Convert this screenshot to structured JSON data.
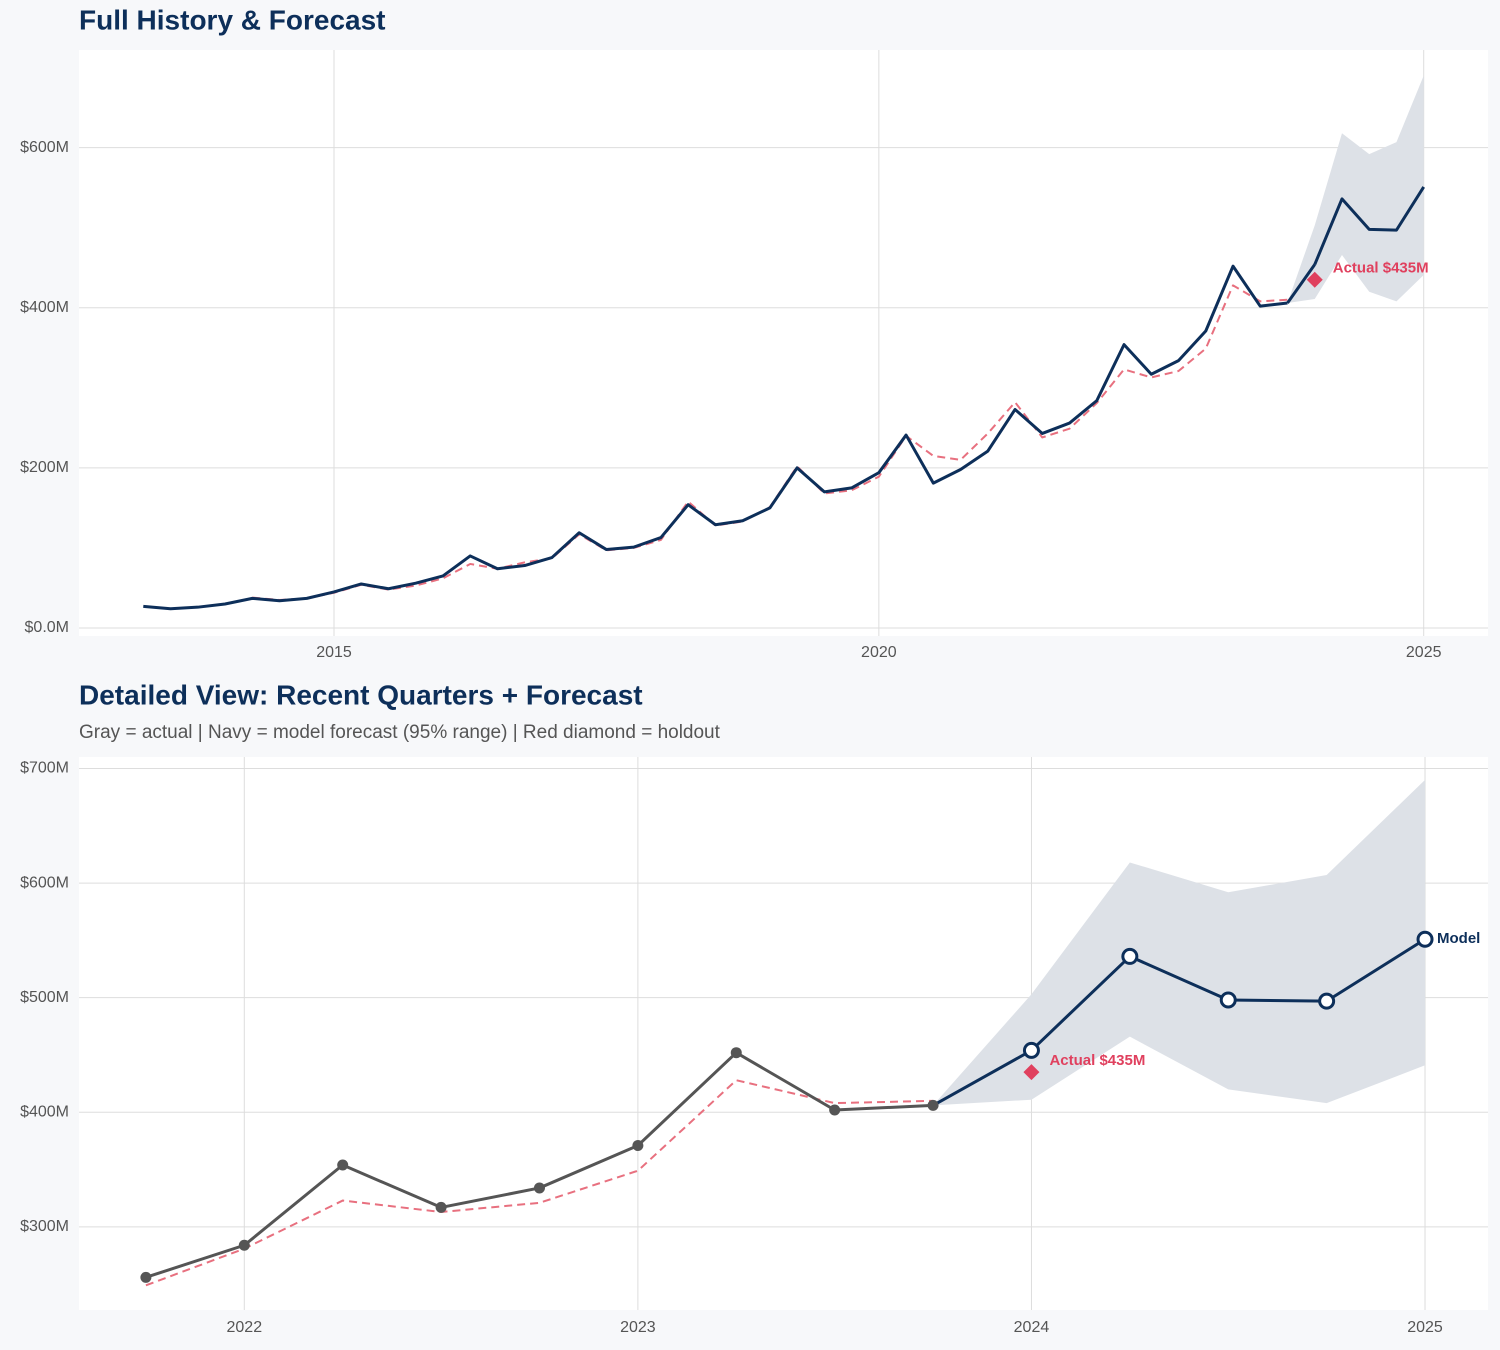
{
  "chart_data": [
    {
      "type": "line",
      "title": "Full History & Forecast",
      "xlim": [
        2012.66,
        2025.59
      ],
      "ylim": [
        -10,
        722
      ],
      "xticks": [
        2015,
        2020,
        2025
      ],
      "yticks": [
        {
          "value": 0,
          "label": "$0.0M"
        },
        {
          "value": 200,
          "label": "$200M"
        },
        {
          "value": 400,
          "label": "$400M"
        },
        {
          "value": 600,
          "label": "$600M"
        }
      ],
      "grid": true,
      "band": {
        "color": "#dde1e7",
        "x": [
          2023.75,
          2024.0,
          2024.25,
          2024.5,
          2024.75,
          2025.0
        ],
        "lower": [
          406,
          411,
          466,
          420,
          408,
          441
        ],
        "upper": [
          406,
          503,
          618,
          592,
          607,
          690
        ]
      },
      "series": [
        {
          "color": "#e8707f",
          "dash": true,
          "markers": "none",
          "x": [
            2014.25,
            2014.5,
            2014.75,
            2015.0,
            2015.25,
            2015.5,
            2015.75,
            2016.0,
            2016.25,
            2016.5,
            2016.75,
            2017.0,
            2017.25,
            2017.5,
            2017.75,
            2018.0,
            2018.25,
            2018.5,
            2018.75,
            2019.0,
            2019.25,
            2019.5,
            2019.75,
            2020.0,
            2020.25,
            2020.5,
            2020.75,
            2021.0,
            2021.25,
            2021.5,
            2021.75,
            2022.0,
            2022.25,
            2022.5,
            2022.75,
            2023.0,
            2023.25,
            2023.5,
            2023.75
          ],
          "values": [
            38,
            35,
            37,
            44,
            54,
            48,
            53,
            62,
            80,
            74,
            82,
            87,
            117,
            97,
            100,
            110,
            158,
            128,
            133,
            151,
            202,
            168,
            172,
            189,
            240,
            215,
            210,
            243,
            282,
            238,
            249,
            281,
            323,
            313,
            321,
            349,
            428,
            408,
            410
          ]
        },
        {
          "color": "#0d2f5a",
          "dash": false,
          "markers": "none",
          "x": [
            2013.25,
            2013.5,
            2013.75,
            2014.0,
            2014.25,
            2014.5,
            2014.75,
            2015.0,
            2015.25,
            2015.5,
            2015.75,
            2016.0,
            2016.25,
            2016.5,
            2016.75,
            2017.0,
            2017.25,
            2017.5,
            2017.75,
            2018.0,
            2018.25,
            2018.5,
            2018.75,
            2019.0,
            2019.25,
            2019.5,
            2019.75,
            2020.0,
            2020.25,
            2020.5,
            2020.75,
            2021.0,
            2021.25,
            2021.5,
            2021.75,
            2022.0,
            2022.25,
            2022.5,
            2022.75,
            2023.0,
            2023.25,
            2023.5,
            2023.75
          ],
          "values": [
            27,
            24,
            26,
            30,
            37,
            34,
            37,
            45,
            55,
            49,
            56,
            65,
            90,
            74,
            78,
            88,
            119,
            98,
            101,
            113,
            154,
            129,
            134,
            150,
            200,
            170,
            175,
            194,
            241,
            181,
            198,
            221,
            273,
            243,
            256,
            284,
            354,
            317,
            334,
            371,
            452,
            402,
            406
          ]
        },
        {
          "color": "#0d2f5a",
          "dash": false,
          "markers": "none",
          "join": true,
          "x": [
            2024.0,
            2024.25,
            2024.5,
            2024.75,
            2025.0
          ],
          "values": [
            454,
            536,
            498,
            497,
            551
          ]
        }
      ],
      "holdout": {
        "x": 2024.0,
        "value": 435,
        "value_label": "Actual $435M",
        "color": "#e0405e"
      }
    },
    {
      "type": "line",
      "title": "Detailed View: Recent Quarters + Forecast",
      "subtitle": "Gray = actual  |  Navy = model forecast (95% range)  |  Red diamond = holdout",
      "xlim": [
        2021.58,
        2025.16
      ],
      "ylim": [
        227.5,
        710
      ],
      "xticks": [
        2022,
        2023,
        2024,
        2025
      ],
      "yticks": [
        {
          "value": 300,
          "label": "$300M"
        },
        {
          "value": 400,
          "label": "$400M"
        },
        {
          "value": 500,
          "label": "$500M"
        },
        {
          "value": 600,
          "label": "$600M"
        },
        {
          "value": 700,
          "label": "$700M"
        }
      ],
      "grid": true,
      "band": {
        "color": "#dde1e7",
        "x": [
          2023.75,
          2024.0,
          2024.25,
          2024.5,
          2024.75,
          2025.0
        ],
        "lower": [
          406,
          411,
          466,
          420,
          408,
          441
        ],
        "upper": [
          406,
          503,
          618,
          592,
          607,
          690
        ]
      },
      "series": [
        {
          "color": "#e8707f",
          "dash": true,
          "markers": "none",
          "x": [
            2021.75,
            2022.0,
            2022.25,
            2022.5,
            2022.75,
            2023.0,
            2023.25,
            2023.5,
            2023.75
          ],
          "values": [
            249,
            281,
            323,
            313,
            321,
            349,
            428,
            408,
            410
          ]
        },
        {
          "color": "#555555",
          "dash": false,
          "markers": "filled",
          "x": [
            2021.75,
            2022.0,
            2022.25,
            2022.5,
            2022.75,
            2023.0,
            2023.25,
            2023.5,
            2023.75
          ],
          "values": [
            256,
            284,
            354,
            317,
            334,
            371,
            452,
            402,
            406
          ]
        },
        {
          "name": "Model",
          "color": "#0d2f5a",
          "dash": false,
          "markers": "open",
          "join": true,
          "x": [
            2024.0,
            2024.25,
            2024.5,
            2024.75,
            2025.0
          ],
          "values": [
            454,
            536,
            498,
            497,
            551
          ]
        }
      ],
      "holdout": {
        "x": 2024.0,
        "value": 435,
        "value_label": "Actual $435M",
        "color": "#e0405e"
      }
    }
  ]
}
